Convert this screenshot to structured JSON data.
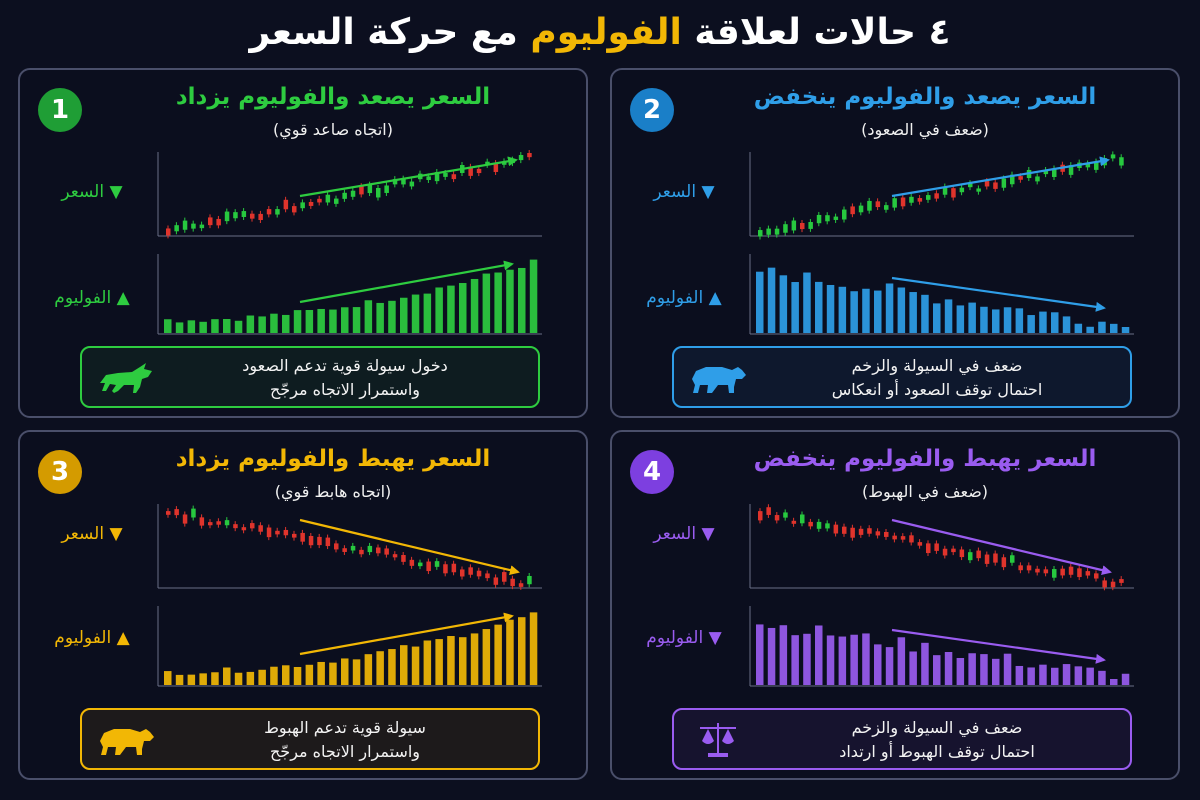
{
  "title": {
    "part1": "٤ حالات لعلاقة ",
    "highlight": "الفوليوم",
    "part2": " مع حركة السعر"
  },
  "panels": [
    {
      "number": "1",
      "title": "السعر يصعد والفوليوم يزداد",
      "subtitle": "(اتجاه صاعد قوي)",
      "price_label": "▼ السعر",
      "volume_label": "▲ الفوليوم",
      "note_line1": "دخول سيولة قوية تدعم الصعود",
      "note_line2": "واستمرار الاتجاه مرجّح",
      "icon": "bull-icon",
      "color": "#2ecc40",
      "badge_color": "#1f9e35"
    },
    {
      "number": "2",
      "title": "السعر يصعد والفوليوم ينخفض",
      "subtitle": "(ضعف في الصعود)",
      "price_label": "▼ السعر",
      "volume_label": "▲ الفوليوم",
      "note_line1": "ضعف في السيولة والزخم",
      "note_line2": "احتمال توقف الصعود أو انعكاس",
      "icon": "bear-icon",
      "color": "#2f9ee8",
      "badge_color": "#1a7fc8"
    },
    {
      "number": "3",
      "title": "السعر يهبط والفوليوم يزداد",
      "subtitle": "(اتجاه هابط قوي)",
      "price_label": "▼ السعر",
      "volume_label": "▲ الفوليوم",
      "note_line1": "سيولة قوية تدعم الهبوط",
      "note_line2": "واستمرار الاتجاه مرجّح",
      "icon": "bear-icon",
      "color": "#f2b705",
      "badge_color": "#d49b00"
    },
    {
      "number": "4",
      "title": "السعر يهبط والفوليوم ينخفض",
      "subtitle": "(ضعف في الهبوط)",
      "price_label": "▼ السعر",
      "volume_label": "▼ الفوليوم",
      "note_line1": "ضعف في السيولة والزخم",
      "note_line2": "احتمال توقف الهبوط أو ارتداد",
      "icon": "scales-icon",
      "color": "#9a5cf0",
      "badge_color": "#7d3fe0"
    }
  ],
  "chart_data": [
    {
      "type": "bar",
      "name": "case-1",
      "price_trend": "up",
      "volume_trend": "up"
    },
    {
      "type": "bar",
      "name": "case-2",
      "price_trend": "up",
      "volume_trend": "down"
    },
    {
      "type": "bar",
      "name": "case-3",
      "price_trend": "down",
      "volume_trend": "up"
    },
    {
      "type": "bar",
      "name": "case-4",
      "price_trend": "down",
      "volume_trend": "down"
    }
  ]
}
